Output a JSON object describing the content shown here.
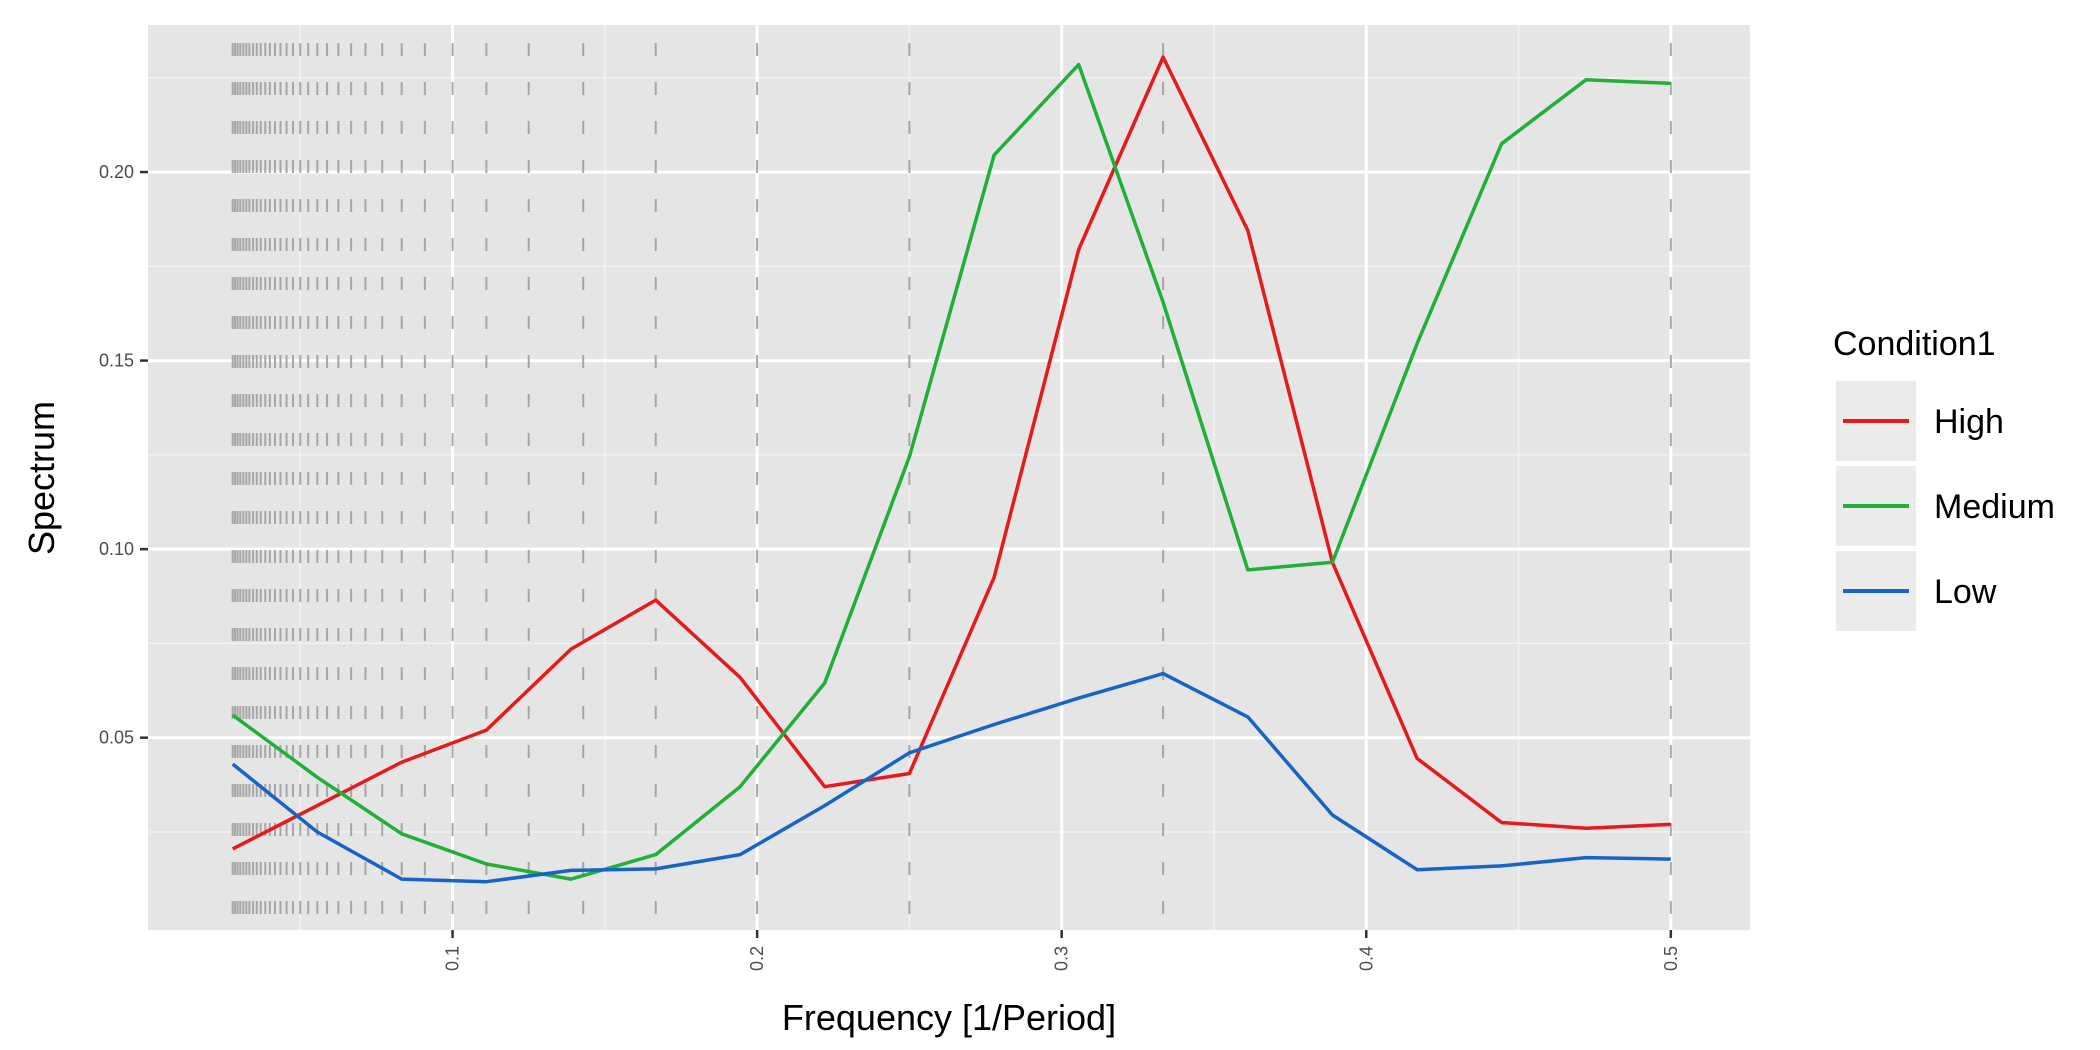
{
  "chart_data": {
    "type": "line",
    "xlabel": "Frequency [1/Period]",
    "ylabel": "Spectrum",
    "xlim": [
      0.0,
      0.526
    ],
    "ylim": [
      -0.001,
      0.239
    ],
    "x_ticks": [
      0.1,
      0.2,
      0.3,
      0.4,
      0.5
    ],
    "x_tick_labels": [
      "0.1",
      "0.2",
      "0.3",
      "0.4",
      "0.5"
    ],
    "x_minor": [
      0.05,
      0.15,
      0.25,
      0.35,
      0.45
    ],
    "y_ticks": [
      0.05,
      0.1,
      0.15,
      0.2
    ],
    "y_tick_labels": [
      "0.05",
      "0.10",
      "0.15",
      "0.20"
    ],
    "y_minor": [
      0.025,
      0.075,
      0.125,
      0.175,
      0.225
    ],
    "grid": true,
    "background": "#e5e5e5",
    "legend": {
      "title": "Condition1",
      "position": "right"
    },
    "reference_lines": {
      "description_values": "vertical dashed lines at harmonic frequencies 1/n",
      "x": [
        0.5,
        0.3333,
        0.25,
        0.2,
        0.1667,
        0.1429,
        0.125,
        0.1111,
        0.1,
        0.0909,
        0.0833,
        0.0769,
        0.0714,
        0.0667,
        0.0625,
        0.0588,
        0.0556,
        0.0526,
        0.05,
        0.0476,
        0.0455,
        0.0435,
        0.0417,
        0.04,
        0.0385,
        0.037,
        0.0357,
        0.0345,
        0.0333,
        0.0323,
        0.0313,
        0.0303,
        0.0294,
        0.0286,
        0.0278
      ],
      "color": "#a6a6a6"
    },
    "x": [
      0.0278,
      0.0556,
      0.0833,
      0.1111,
      0.1389,
      0.1667,
      0.1944,
      0.2222,
      0.25,
      0.2778,
      0.3056,
      0.3333,
      0.3611,
      0.3889,
      0.4167,
      0.4444,
      0.4722,
      0.5
    ],
    "series": [
      {
        "name": "High",
        "color": "#e41a1c",
        "values": [
          0.0205,
          0.032,
          0.0435,
          0.052,
          0.0735,
          0.0865,
          0.066,
          0.037,
          0.0405,
          0.0925,
          0.1795,
          0.2305,
          0.1845,
          0.0965,
          0.0445,
          0.0275,
          0.026,
          0.027
        ]
      },
      {
        "name": "Medium",
        "color": "#1fb036",
        "values": [
          0.056,
          0.0395,
          0.0245,
          0.0165,
          0.0125,
          0.019,
          0.037,
          0.0645,
          0.1245,
          0.2045,
          0.2285,
          0.1655,
          0.0945,
          0.0965,
          0.1545,
          0.2075,
          0.2245,
          0.2235
        ]
      },
      {
        "name": "Low",
        "color": "#1565c8",
        "values": [
          0.043,
          0.025,
          0.0125,
          0.0118,
          0.0148,
          0.0152,
          0.019,
          0.032,
          0.046,
          0.0535,
          0.0605,
          0.067,
          0.0555,
          0.0295,
          0.015,
          0.016,
          0.0182,
          0.0178
        ]
      }
    ]
  }
}
